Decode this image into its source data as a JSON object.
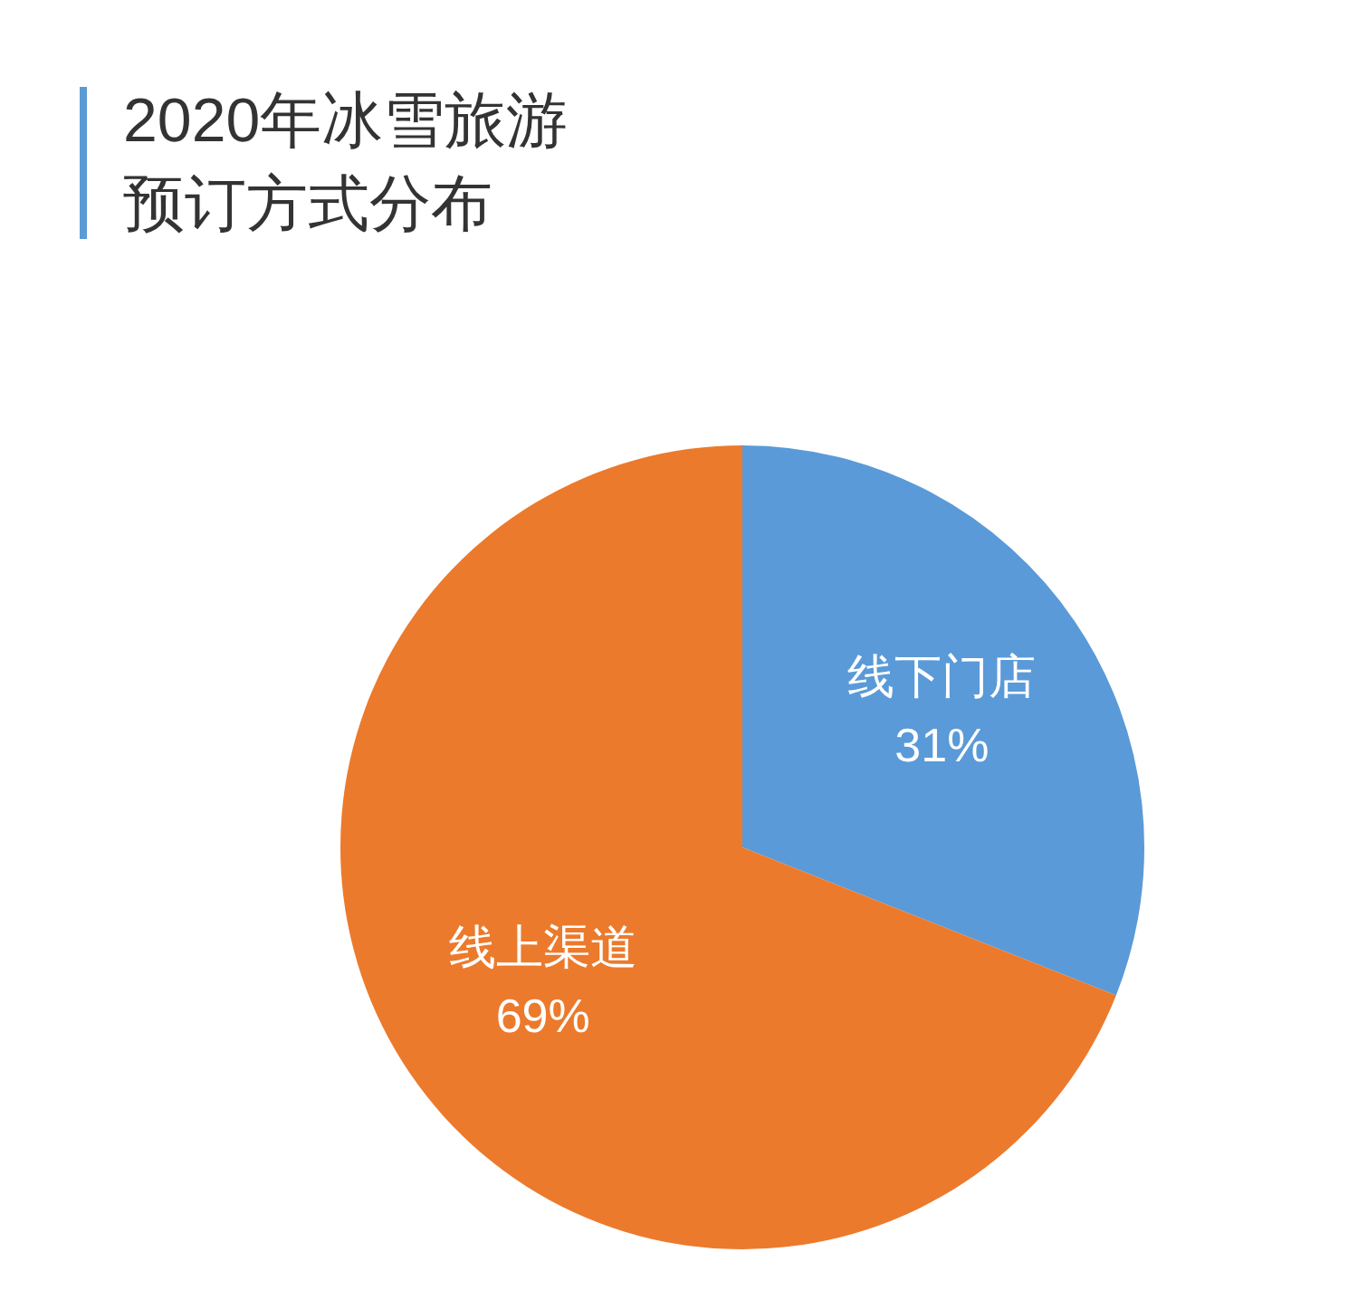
{
  "chart_data": {
    "type": "pie",
    "title": "2020年冰雪旅游预订方式分布",
    "categories": [
      "线下门店",
      "线上渠道"
    ],
    "values": [
      31,
      69
    ],
    "value_labels": [
      "31%",
      "69%"
    ],
    "colors": [
      "#5a9ad8",
      "#ec7a2c"
    ]
  }
}
